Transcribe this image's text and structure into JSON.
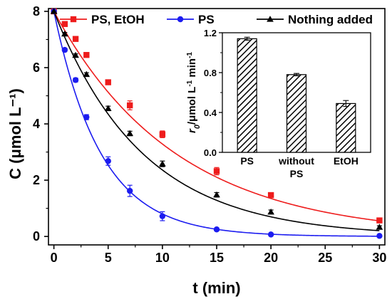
{
  "chart_data": [
    {
      "type": "line",
      "title": "",
      "xlabel": "t (min)",
      "ylabel": "C (μmol L⁻¹)",
      "xlim": [
        -0.5,
        30.5
      ],
      "ylim": [
        -0.3,
        8.1
      ],
      "xticks": [
        0,
        5,
        10,
        15,
        20,
        25,
        30
      ],
      "yticks": [
        0,
        2,
        4,
        6,
        8
      ],
      "grid": false,
      "legend": "top",
      "series": [
        {
          "name": "PS, EtOH",
          "color": "#ee1c1c",
          "marker": "square",
          "points": [
            [
              0,
              8.0
            ],
            [
              1,
              7.55
            ],
            [
              2,
              7.02
            ],
            [
              3,
              6.45
            ],
            [
              5,
              5.48
            ],
            [
              7,
              4.66
            ],
            [
              10,
              3.63
            ],
            [
              15,
              2.32
            ],
            [
              20,
              1.47
            ],
            [
              30,
              0.57
            ]
          ],
          "errors": [
            0,
            0.06,
            0.06,
            0.07,
            0.08,
            0.16,
            0.12,
            0.13,
            0.08,
            0.06
          ],
          "fit": {
            "a": 8.0,
            "k": 0.089
          }
        },
        {
          "name": "PS",
          "color": "#1c1cf0",
          "marker": "circle",
          "points": [
            [
              0,
              8.0
            ],
            [
              1,
              6.63
            ],
            [
              2,
              5.56
            ],
            [
              3,
              4.24
            ],
            [
              5,
              2.68
            ],
            [
              7,
              1.62
            ],
            [
              10,
              0.72
            ],
            [
              15,
              0.25
            ],
            [
              20,
              0.07
            ],
            [
              30,
              0.02
            ]
          ],
          "errors": [
            0,
            0.06,
            0.07,
            0.09,
            0.15,
            0.2,
            0.16,
            0.05,
            0.03,
            0.02
          ],
          "fit": {
            "a": 8.0,
            "k": 0.23
          }
        },
        {
          "name": "Nothing added",
          "color": "#000000",
          "marker": "triangle",
          "points": [
            [
              0,
              8.0
            ],
            [
              1,
              7.2
            ],
            [
              2,
              6.44
            ],
            [
              3,
              5.76
            ],
            [
              5,
              4.55
            ],
            [
              7,
              3.66
            ],
            [
              10,
              2.58
            ],
            [
              15,
              1.48
            ],
            [
              20,
              0.87
            ],
            [
              30,
              0.33
            ]
          ],
          "errors": [
            0,
            0.05,
            0.05,
            0.06,
            0.08,
            0.08,
            0.1,
            0.08,
            0.07,
            0.05
          ],
          "fit": {
            "a": 8.0,
            "k": 0.122
          }
        }
      ]
    },
    {
      "type": "bar",
      "title": "",
      "ylabel": "r0/μmol L⁻¹ min⁻¹",
      "ylabel_parts": {
        "symbol": "r",
        "subscript": "0",
        "unit": "/μmol L",
        "exp1": "-1",
        "unit2": " min",
        "exp2": "-1"
      },
      "ylim": [
        0,
        1.2
      ],
      "yticks": [
        "0.0",
        "0.4",
        "0.8",
        "1.2"
      ],
      "categories": [
        "PS",
        "without PS",
        "EtOH"
      ],
      "category_lines": [
        [
          "PS"
        ],
        [
          "without",
          "PS"
        ],
        [
          "EtOH"
        ]
      ],
      "values": [
        1.14,
        0.78,
        0.49
      ],
      "errors": [
        0.015,
        0.012,
        0.03
      ],
      "fill": "hatched"
    }
  ]
}
